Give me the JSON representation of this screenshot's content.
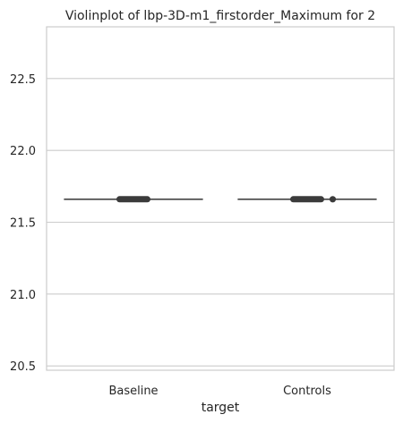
{
  "chart_data": {
    "type": "violin",
    "title": "Violinplot of lbp-3D-m1_firstorder_Maximum for 2",
    "xlabel": "target",
    "ylabel": "",
    "categories": [
      "Baseline",
      "Controls"
    ],
    "ylim": [
      20.47,
      22.86
    ],
    "yticks": [
      20.5,
      21.0,
      21.5,
      22.0,
      22.5
    ],
    "ytick_labels": [
      "20.5",
      "21.0",
      "21.5",
      "22.0",
      "22.5"
    ],
    "grid": "horizontal",
    "series": [
      {
        "category": "Baseline",
        "median": 21.66,
        "whisker_range": [
          21.66,
          21.66
        ],
        "box_range": [
          21.66,
          21.66
        ]
      },
      {
        "category": "Controls",
        "median": 21.66,
        "whisker_range": [
          21.66,
          21.66
        ],
        "box_range": [
          21.66,
          21.66
        ],
        "outliers": [
          21.66
        ]
      }
    ],
    "colors": {
      "grid": "#cccccc",
      "frame": "#cccccc",
      "line": "#444444",
      "marks": "#3b3b3b",
      "text": "#262626"
    }
  }
}
